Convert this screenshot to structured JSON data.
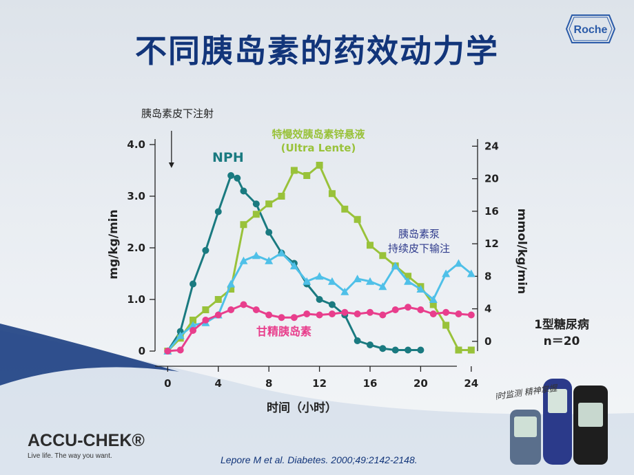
{
  "slide": {
    "title": "不同胰岛素的药效动力学",
    "citation": "Lepore M et al. Diabetes. 2000;49:2142-2148.",
    "brand_name": "ACCU-CHEK®",
    "brand_tagline": "Live life. The way you want.",
    "logo_text": "Roche",
    "device_script": "随时监测 精神掌握"
  },
  "chart_data": {
    "type": "line",
    "xlabel": "时间（小时）",
    "ylabel_left": "mg/kg/min",
    "ylabel_right": "mmol/kg/min",
    "x_ticks": [
      0,
      4,
      8,
      12,
      16,
      20,
      24
    ],
    "xlim": [
      -1,
      24.5
    ],
    "y_left_ticks": [
      "0",
      "1.0",
      "2.0",
      "3.0",
      "4.0"
    ],
    "y_left_values": [
      0,
      1,
      2,
      3,
      4
    ],
    "ylim_left": [
      0,
      4
    ],
    "y_right_ticks": [
      "0",
      "4",
      "8",
      "12",
      "16",
      "20",
      "24"
    ],
    "y_right_values": [
      0,
      4,
      8,
      12,
      16,
      20,
      24
    ],
    "ylim_right": [
      -1.2,
      24.2
    ],
    "injection_label": "胰岛素皮下注射",
    "injection_x": 0.3,
    "group_label": "1型糖尿病",
    "n_label": "n＝20",
    "series": [
      {
        "name": "NPH",
        "color": "#1a7a80",
        "marker": "circle",
        "x": [
          0,
          1,
          2,
          3,
          4,
          5,
          5.5,
          6,
          7,
          8,
          9,
          10,
          11,
          12,
          13,
          14,
          15,
          16,
          17,
          18,
          19,
          20
        ],
        "y": [
          0,
          0.38,
          1.3,
          1.95,
          2.7,
          3.4,
          3.35,
          3.1,
          2.85,
          2.3,
          1.9,
          1.7,
          1.3,
          1.0,
          0.9,
          0.7,
          0.2,
          0.12,
          0.05,
          0.02,
          0.02,
          0.02
        ]
      },
      {
        "name": "特慢效胰岛素锌悬液 (Ultra Lente)",
        "name_line1": "特慢效胰岛素锌悬液",
        "name_line2": "(Ultra Lente)",
        "color": "#99c23a",
        "marker": "square",
        "x": [
          0,
          1,
          2,
          3,
          4,
          5,
          6,
          7,
          8,
          9,
          10,
          11,
          12,
          13,
          14,
          15,
          16,
          17,
          18,
          19,
          20,
          21,
          22,
          23,
          24
        ],
        "y": [
          0,
          0.25,
          0.6,
          0.8,
          1.0,
          1.2,
          2.45,
          2.65,
          2.85,
          3.0,
          3.5,
          3.4,
          3.6,
          3.05,
          2.75,
          2.55,
          2.05,
          1.85,
          1.65,
          1.45,
          1.25,
          0.9,
          0.5,
          0.02,
          0.02
        ]
      },
      {
        "name": "胰岛素泵 持续皮下输注",
        "name_line1": "胰岛素泵",
        "name_line2": "持续皮下输注",
        "color": "#4fc0e8",
        "marker": "triangle",
        "x": [
          0,
          1,
          2,
          3,
          4,
          5,
          6,
          7,
          8,
          9,
          10,
          11,
          12,
          13,
          14,
          15,
          16,
          17,
          18,
          19,
          20,
          21,
          22,
          23,
          24
        ],
        "y": [
          0,
          0.3,
          0.5,
          0.55,
          0.7,
          1.3,
          1.75,
          1.85,
          1.75,
          1.9,
          1.65,
          1.35,
          1.45,
          1.35,
          1.15,
          1.4,
          1.35,
          1.25,
          1.65,
          1.35,
          1.2,
          1.0,
          1.5,
          1.7,
          1.5
        ]
      },
      {
        "name": "甘精胰岛素",
        "color": "#e83e8c",
        "marker": "circle",
        "x": [
          0,
          1,
          2,
          3,
          4,
          5,
          6,
          7,
          8,
          9,
          10,
          11,
          12,
          13,
          14,
          15,
          16,
          17,
          18,
          19,
          20,
          21,
          22,
          23,
          24
        ],
        "y": [
          0,
          0.02,
          0.4,
          0.6,
          0.7,
          0.8,
          0.9,
          0.8,
          0.7,
          0.65,
          0.65,
          0.72,
          0.7,
          0.72,
          0.75,
          0.72,
          0.75,
          0.7,
          0.8,
          0.85,
          0.8,
          0.72,
          0.75,
          0.72,
          0.7
        ]
      }
    ]
  }
}
